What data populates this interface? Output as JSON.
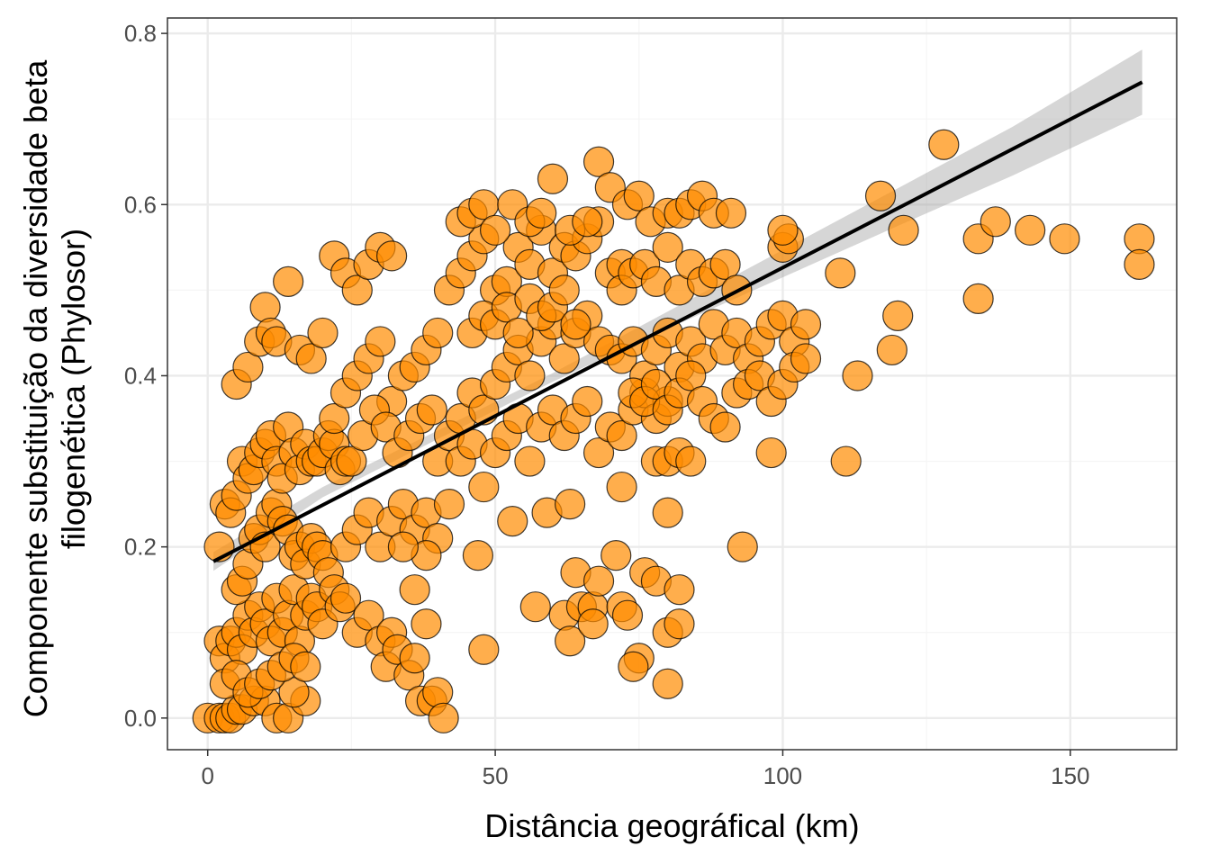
{
  "chart_data": {
    "type": "scatter",
    "title": "",
    "xlabel": "Distância geográfical (km)",
    "ylabel": [
      "Componente substituição da diversidade beta",
      "filogenética (Phylosor)"
    ],
    "xlim": [
      -7,
      168.5
    ],
    "ylim": [
      -0.037,
      0.818
    ],
    "x_ticks": [
      0,
      50,
      100,
      150
    ],
    "x_tick_labels": [
      "0",
      "50",
      "100",
      "150"
    ],
    "y_ticks": [
      0.0,
      0.2,
      0.4,
      0.6,
      0.8
    ],
    "y_tick_labels": [
      "0.0",
      "0.2",
      "0.4",
      "0.6",
      "0.8"
    ],
    "grid": true,
    "legend": "none",
    "colors": {
      "points_fill": "#FF8C00",
      "points_alpha": 0.7,
      "points_stroke": "#000000",
      "fit_line": "#000000",
      "confidence_band": "#999999",
      "grid_major": "#EBEBEB",
      "grid_minor": "#F5F5F5",
      "panel_border": "#333333"
    },
    "fit_line": {
      "x": [
        1,
        162.5
      ],
      "y": [
        0.183,
        0.743
      ]
    },
    "confidence_band": {
      "x": [
        1,
        20,
        40,
        60,
        80,
        100,
        120,
        140,
        162.5
      ],
      "lower": [
        0.172,
        0.258,
        0.326,
        0.393,
        0.455,
        0.515,
        0.575,
        0.634,
        0.705
      ],
      "upper": [
        0.194,
        0.27,
        0.336,
        0.403,
        0.475,
        0.547,
        0.619,
        0.691,
        0.781
      ]
    },
    "points": [
      [
        0,
        0.0
      ],
      [
        2,
        0.0
      ],
      [
        3,
        0.0
      ],
      [
        4,
        0.0
      ],
      [
        5,
        0.01
      ],
      [
        6,
        0.01
      ],
      [
        8,
        0.02
      ],
      [
        10,
        0.02
      ],
      [
        12,
        0.0
      ],
      [
        14,
        0.0
      ],
      [
        17,
        0.02
      ],
      [
        15,
        0.03
      ],
      [
        2,
        0.09
      ],
      [
        3,
        0.07
      ],
      [
        4,
        0.09
      ],
      [
        5,
        0.1
      ],
      [
        6,
        0.08
      ],
      [
        7,
        0.12
      ],
      [
        8,
        0.1
      ],
      [
        9,
        0.13
      ],
      [
        10,
        0.11
      ],
      [
        11,
        0.09
      ],
      [
        12,
        0.14
      ],
      [
        13,
        0.1
      ],
      [
        14,
        0.12
      ],
      [
        15,
        0.15
      ],
      [
        16,
        0.09
      ],
      [
        17,
        0.12
      ],
      [
        18,
        0.14
      ],
      [
        19,
        0.13
      ],
      [
        20,
        0.11
      ],
      [
        3,
        0.04
      ],
      [
        5,
        0.05
      ],
      [
        7,
        0.03
      ],
      [
        9,
        0.04
      ],
      [
        11,
        0.05
      ],
      [
        13,
        0.06
      ],
      [
        15,
        0.07
      ],
      [
        17,
        0.06
      ],
      [
        2,
        0.2
      ],
      [
        3,
        0.25
      ],
      [
        4,
        0.24
      ],
      [
        5,
        0.15
      ],
      [
        6,
        0.16
      ],
      [
        7,
        0.18
      ],
      [
        8,
        0.21
      ],
      [
        9,
        0.22
      ],
      [
        10,
        0.2
      ],
      [
        11,
        0.24
      ],
      [
        12,
        0.25
      ],
      [
        13,
        0.23
      ],
      [
        14,
        0.22
      ],
      [
        15,
        0.19
      ],
      [
        16,
        0.2
      ],
      [
        17,
        0.18
      ],
      [
        18,
        0.21
      ],
      [
        19,
        0.2
      ],
      [
        20,
        0.19
      ],
      [
        21,
        0.17
      ],
      [
        22,
        0.15
      ],
      [
        23,
        0.13
      ],
      [
        24,
        0.14
      ],
      [
        5,
        0.26
      ],
      [
        6,
        0.3
      ],
      [
        7,
        0.28
      ],
      [
        8,
        0.29
      ],
      [
        9,
        0.31
      ],
      [
        10,
        0.32
      ],
      [
        11,
        0.33
      ],
      [
        12,
        0.3
      ],
      [
        13,
        0.28
      ],
      [
        14,
        0.34
      ],
      [
        15,
        0.31
      ],
      [
        16,
        0.29
      ],
      [
        17,
        0.32
      ],
      [
        18,
        0.3
      ],
      [
        19,
        0.3
      ],
      [
        20,
        0.31
      ],
      [
        21,
        0.33
      ],
      [
        22,
        0.32
      ],
      [
        23,
        0.29
      ],
      [
        24,
        0.3
      ],
      [
        5,
        0.39
      ],
      [
        7,
        0.41
      ],
      [
        9,
        0.44
      ],
      [
        10,
        0.48
      ],
      [
        11,
        0.45
      ],
      [
        12,
        0.44
      ],
      [
        14,
        0.51
      ],
      [
        16,
        0.43
      ],
      [
        18,
        0.42
      ],
      [
        20,
        0.45
      ],
      [
        22,
        0.54
      ],
      [
        24,
        0.52
      ],
      [
        26,
        0.5
      ],
      [
        28,
        0.53
      ],
      [
        30,
        0.55
      ],
      [
        32,
        0.54
      ],
      [
        22,
        0.35
      ],
      [
        24,
        0.38
      ],
      [
        26,
        0.4
      ],
      [
        28,
        0.42
      ],
      [
        30,
        0.44
      ],
      [
        32,
        0.37
      ],
      [
        34,
        0.4
      ],
      [
        36,
        0.41
      ],
      [
        38,
        0.43
      ],
      [
        40,
        0.45
      ],
      [
        25,
        0.3
      ],
      [
        27,
        0.33
      ],
      [
        29,
        0.36
      ],
      [
        31,
        0.34
      ],
      [
        33,
        0.31
      ],
      [
        35,
        0.33
      ],
      [
        37,
        0.35
      ],
      [
        39,
        0.36
      ],
      [
        24,
        0.2
      ],
      [
        26,
        0.22
      ],
      [
        28,
        0.24
      ],
      [
        30,
        0.2
      ],
      [
        32,
        0.23
      ],
      [
        34,
        0.25
      ],
      [
        36,
        0.22
      ],
      [
        38,
        0.24
      ],
      [
        40,
        0.21
      ],
      [
        42,
        0.25
      ],
      [
        26,
        0.1
      ],
      [
        28,
        0.12
      ],
      [
        30,
        0.09
      ],
      [
        31,
        0.06
      ],
      [
        32,
        0.1
      ],
      [
        33,
        0.08
      ],
      [
        35,
        0.05
      ],
      [
        36,
        0.07
      ],
      [
        37,
        0.02
      ],
      [
        38,
        0.11
      ],
      [
        39,
        0.02
      ],
      [
        40,
        0.03
      ],
      [
        41,
        0.0
      ],
      [
        36,
        0.15
      ],
      [
        38,
        0.19
      ],
      [
        34,
        0.2
      ],
      [
        40,
        0.3
      ],
      [
        42,
        0.33
      ],
      [
        44,
        0.35
      ],
      [
        46,
        0.38
      ],
      [
        48,
        0.36
      ],
      [
        50,
        0.39
      ],
      [
        52,
        0.41
      ],
      [
        54,
        0.43
      ],
      [
        56,
        0.4
      ],
      [
        58,
        0.44
      ],
      [
        60,
        0.46
      ],
      [
        62,
        0.42
      ],
      [
        64,
        0.45
      ],
      [
        66,
        0.47
      ],
      [
        68,
        0.44
      ],
      [
        70,
        0.43
      ],
      [
        42,
        0.5
      ],
      [
        44,
        0.52
      ],
      [
        46,
        0.54
      ],
      [
        48,
        0.56
      ],
      [
        50,
        0.5
      ],
      [
        52,
        0.51
      ],
      [
        54,
        0.55
      ],
      [
        56,
        0.53
      ],
      [
        58,
        0.57
      ],
      [
        60,
        0.52
      ],
      [
        62,
        0.55
      ],
      [
        64,
        0.54
      ],
      [
        66,
        0.56
      ],
      [
        68,
        0.58
      ],
      [
        70,
        0.52
      ],
      [
        72,
        0.53
      ],
      [
        44,
        0.58
      ],
      [
        46,
        0.59
      ],
      [
        48,
        0.6
      ],
      [
        50,
        0.57
      ],
      [
        53,
        0.6
      ],
      [
        56,
        0.58
      ],
      [
        58,
        0.59
      ],
      [
        60,
        0.63
      ],
      [
        63,
        0.57
      ],
      [
        66,
        0.58
      ],
      [
        68,
        0.65
      ],
      [
        70,
        0.62
      ],
      [
        73,
        0.6
      ],
      [
        75,
        0.61
      ],
      [
        77,
        0.58
      ],
      [
        46,
        0.45
      ],
      [
        48,
        0.47
      ],
      [
        50,
        0.46
      ],
      [
        52,
        0.48
      ],
      [
        54,
        0.45
      ],
      [
        56,
        0.49
      ],
      [
        58,
        0.47
      ],
      [
        60,
        0.48
      ],
      [
        62,
        0.5
      ],
      [
        64,
        0.46
      ],
      [
        44,
        0.3
      ],
      [
        46,
        0.32
      ],
      [
        48,
        0.27
      ],
      [
        50,
        0.31
      ],
      [
        52,
        0.33
      ],
      [
        54,
        0.35
      ],
      [
        56,
        0.3
      ],
      [
        58,
        0.34
      ],
      [
        60,
        0.36
      ],
      [
        62,
        0.33
      ],
      [
        64,
        0.35
      ],
      [
        66,
        0.37
      ],
      [
        68,
        0.31
      ],
      [
        70,
        0.34
      ],
      [
        72,
        0.33
      ],
      [
        74,
        0.36
      ],
      [
        76,
        0.38
      ],
      [
        78,
        0.35
      ],
      [
        80,
        0.37
      ],
      [
        53,
        0.23
      ],
      [
        59,
        0.24
      ],
      [
        63,
        0.25
      ],
      [
        72,
        0.27
      ],
      [
        47,
        0.19
      ],
      [
        48,
        0.08
      ],
      [
        57,
        0.13
      ],
      [
        62,
        0.12
      ],
      [
        64,
        0.17
      ],
      [
        65,
        0.13
      ],
      [
        63,
        0.09
      ],
      [
        67,
        0.13
      ],
      [
        68,
        0.16
      ],
      [
        67,
        0.11
      ],
      [
        71,
        0.19
      ],
      [
        72,
        0.13
      ],
      [
        73,
        0.12
      ],
      [
        75,
        0.07
      ],
      [
        74,
        0.06
      ],
      [
        76,
        0.17
      ],
      [
        78,
        0.16
      ],
      [
        80,
        0.1
      ],
      [
        80,
        0.04
      ],
      [
        82,
        0.15
      ],
      [
        82,
        0.11
      ],
      [
        80,
        0.24
      ],
      [
        72,
        0.42
      ],
      [
        74,
        0.44
      ],
      [
        76,
        0.4
      ],
      [
        78,
        0.43
      ],
      [
        80,
        0.45
      ],
      [
        82,
        0.41
      ],
      [
        84,
        0.44
      ],
      [
        86,
        0.42
      ],
      [
        88,
        0.46
      ],
      [
        90,
        0.43
      ],
      [
        92,
        0.45
      ],
      [
        94,
        0.42
      ],
      [
        96,
        0.44
      ],
      [
        98,
        0.46
      ],
      [
        100,
        0.47
      ],
      [
        102,
        0.44
      ],
      [
        104,
        0.46
      ],
      [
        72,
        0.5
      ],
      [
        74,
        0.52
      ],
      [
        76,
        0.53
      ],
      [
        78,
        0.51
      ],
      [
        80,
        0.55
      ],
      [
        82,
        0.5
      ],
      [
        84,
        0.53
      ],
      [
        86,
        0.51
      ],
      [
        88,
        0.52
      ],
      [
        90,
        0.53
      ],
      [
        92,
        0.5
      ],
      [
        80,
        0.59
      ],
      [
        82,
        0.59
      ],
      [
        84,
        0.6
      ],
      [
        86,
        0.61
      ],
      [
        88,
        0.59
      ],
      [
        91,
        0.59
      ],
      [
        74,
        0.38
      ],
      [
        76,
        0.37
      ],
      [
        78,
        0.39
      ],
      [
        80,
        0.36
      ],
      [
        82,
        0.38
      ],
      [
        84,
        0.4
      ],
      [
        86,
        0.37
      ],
      [
        88,
        0.35
      ],
      [
        90,
        0.34
      ],
      [
        92,
        0.38
      ],
      [
        94,
        0.39
      ],
      [
        96,
        0.4
      ],
      [
        98,
        0.37
      ],
      [
        100,
        0.39
      ],
      [
        102,
        0.41
      ],
      [
        104,
        0.42
      ],
      [
        78,
        0.3
      ],
      [
        80,
        0.3
      ],
      [
        82,
        0.31
      ],
      [
        84,
        0.3
      ],
      [
        98,
        0.31
      ],
      [
        93,
        0.2
      ],
      [
        111,
        0.3
      ],
      [
        113,
        0.4
      ],
      [
        110,
        0.52
      ],
      [
        119,
        0.43
      ],
      [
        120,
        0.47
      ],
      [
        121,
        0.57
      ],
      [
        117,
        0.61
      ],
      [
        128,
        0.67
      ],
      [
        134,
        0.56
      ],
      [
        134,
        0.49
      ],
      [
        137,
        0.58
      ],
      [
        143,
        0.57
      ],
      [
        149,
        0.56
      ],
      [
        162,
        0.56
      ],
      [
        162,
        0.53
      ],
      [
        100,
        0.55
      ],
      [
        101,
        0.56
      ],
      [
        100,
        0.57
      ]
    ]
  }
}
